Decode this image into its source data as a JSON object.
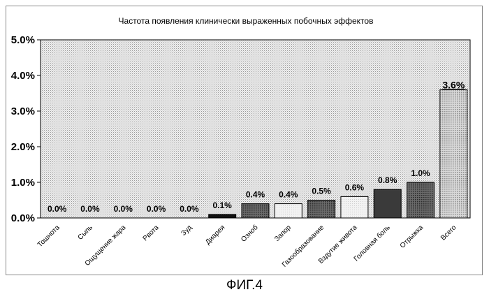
{
  "chart_data": {
    "type": "bar",
    "title": "Частота появления клинически выраженных побочных эффектов",
    "xlabel": "",
    "ylabel": "",
    "ylim": [
      0,
      5
    ],
    "yticks": [
      "0.0%",
      "1.0%",
      "2.0%",
      "3.0%",
      "4.0%",
      "5.0%"
    ],
    "grid": false,
    "legend": "none",
    "categories": [
      "Тошнота",
      "Сыпь",
      "Ощущение жара",
      "Рвота",
      "Зуд",
      "Диарея",
      "Озноб",
      "Запор",
      "Газообразование",
      "Вздутие живота",
      "Головная боль",
      "Отрыжка",
      "Всего"
    ],
    "values": [
      0.0,
      0.0,
      0.0,
      0.0,
      0.0,
      0.1,
      0.4,
      0.4,
      0.5,
      0.6,
      0.8,
      1.0,
      3.6
    ],
    "data_labels": [
      "0.0%",
      "0.0%",
      "0.0%",
      "0.0%",
      "0.0%",
      "0.1%",
      "0.4%",
      "0.4%",
      "0.5%",
      "0.6%",
      "0.8%",
      "1.0%",
      "3.6%"
    ],
    "bar_fills": [
      "#000000",
      "#000000",
      "#000000",
      "#000000",
      "#000000",
      "#111111",
      "#5a5a5a",
      "#e8e8e8",
      "#6e6e6e",
      "#f4f4f4",
      "#3a3a3a",
      "#4e4e4e",
      "#c4c4c4"
    ],
    "plot_background": "#d4d4d4"
  },
  "caption": "ФИГ.4"
}
